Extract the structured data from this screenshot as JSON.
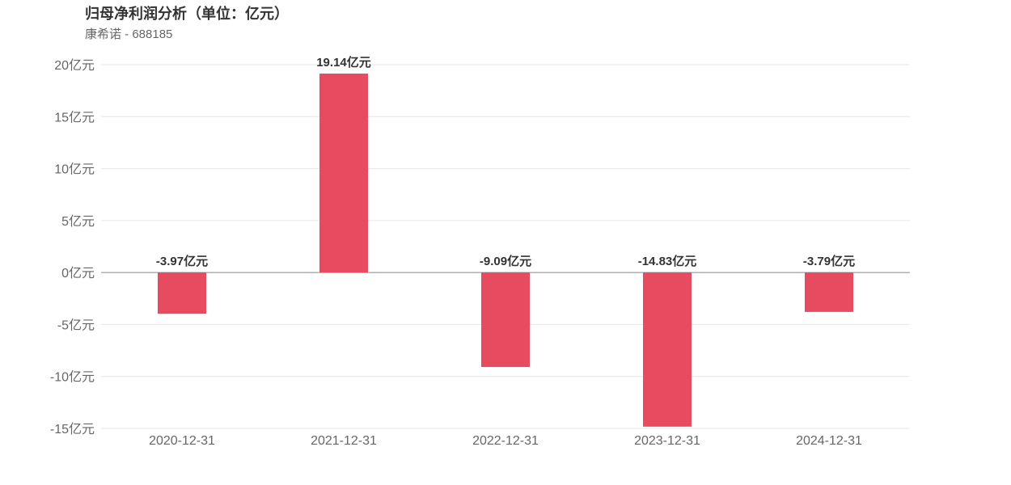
{
  "title": "归母净利润分析（单位：亿元）",
  "subtitle": "康希诺 - 688185",
  "chart_data": {
    "type": "bar",
    "categories": [
      "2020-12-31",
      "2021-12-31",
      "2022-12-31",
      "2023-12-31",
      "2024-12-31"
    ],
    "values": [
      -3.97,
      19.14,
      -9.09,
      -14.83,
      -3.79
    ],
    "data_labels": [
      "-3.97亿元",
      "19.14亿元",
      "-9.09亿元",
      "-14.83亿元",
      "-3.79亿元"
    ],
    "ylim": [
      -15,
      20
    ],
    "yticks": [
      20,
      15,
      10,
      5,
      0,
      -5,
      -10,
      -15
    ],
    "ytick_labels": [
      "20亿元",
      "15亿元",
      "10亿元",
      "5亿元",
      "0亿元",
      "-5亿元",
      "-10亿元",
      "-15亿元"
    ],
    "bar_color": "#e64b5f",
    "grid": true
  }
}
